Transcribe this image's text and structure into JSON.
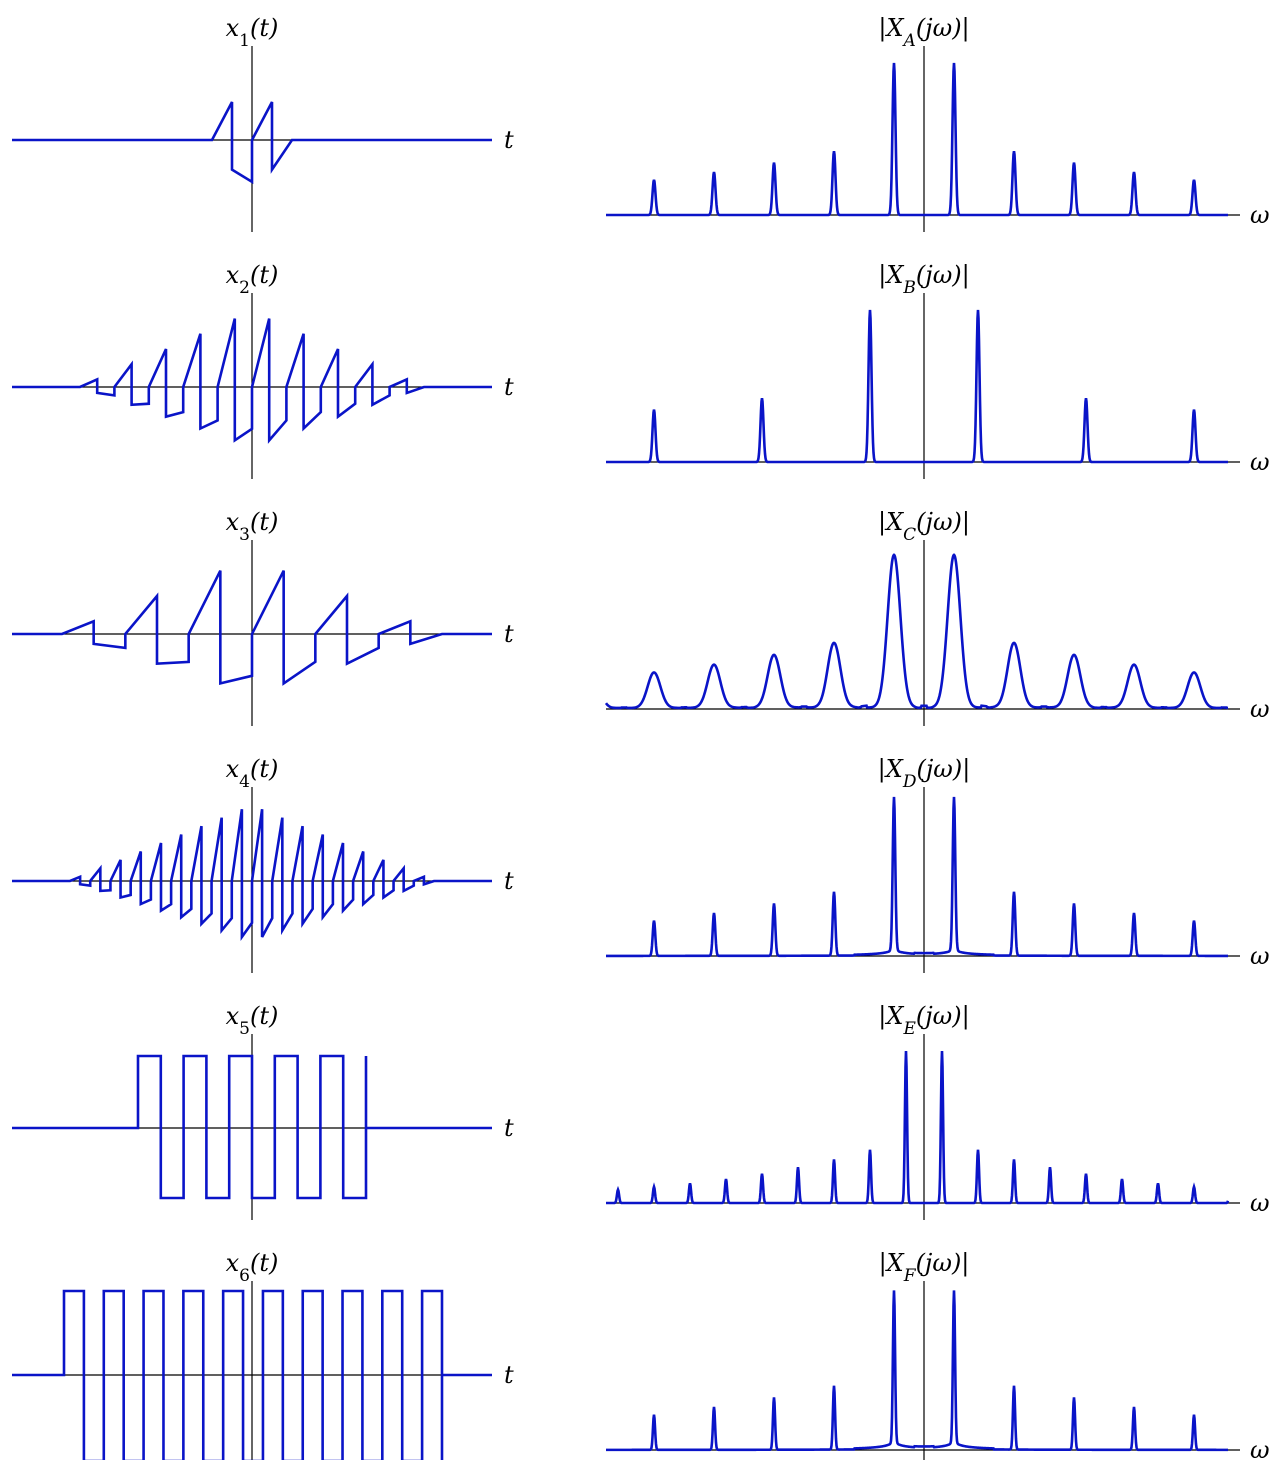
{
  "colors": {
    "signal": "#0a14c8",
    "axis": "#000000",
    "background": "#ffffff"
  },
  "axis_labels": {
    "time": "t",
    "freq": "ω"
  },
  "rows": [
    {
      "time_label": "x1(t)",
      "time_sub": "1",
      "freq_label": "|XA(jω)|",
      "freq_sub": "A",
      "time_kind": "sawtooth",
      "n_periods": 2,
      "peak": 1.0,
      "freq_peaks": {
        "spacing": 1.0,
        "count": 9,
        "first_height": 1.0,
        "decay": 0.42,
        "width": 0.07,
        "leakage": 0.0,
        "sidelobes": false
      }
    },
    {
      "time_label": "x2(t)",
      "time_sub": "2",
      "freq_label": "|XB(jω)|",
      "freq_sub": "B",
      "time_kind": "sawtooth",
      "n_periods": 10,
      "peak": 1.0,
      "freq_peaks": {
        "spacing": 1.8,
        "count": 5,
        "first_height": 1.0,
        "decay": 0.42,
        "width": 0.07,
        "leakage": 0.0,
        "sidelobes": false
      }
    },
    {
      "time_label": "x3(t)",
      "time_sub": "3",
      "freq_label": "|XC(jω)|",
      "freq_sub": "C",
      "time_kind": "sawtooth",
      "n_periods": 6,
      "peak": 1.0,
      "freq_peaks": {
        "spacing": 1.0,
        "count": 9,
        "first_height": 1.0,
        "decay": 0.42,
        "width": 0.3,
        "leakage": 0.0,
        "sidelobes": true
      }
    },
    {
      "time_label": "x4(t)",
      "time_sub": "4",
      "freq_label": "|XD(jω)|",
      "freq_sub": "D",
      "time_kind": "sawtooth",
      "n_periods": 18,
      "peak": 1.0,
      "freq_peaks": {
        "spacing": 1.0,
        "count": 9,
        "first_height": 1.0,
        "decay": 0.42,
        "width": 0.06,
        "leakage": 0.18,
        "sidelobes": false
      }
    },
    {
      "time_label": "x5(t)",
      "time_sub": "5",
      "freq_label": "|XE(jω)|",
      "freq_sub": "E",
      "time_kind": "square",
      "n_periods": 5,
      "peak": 1.0,
      "freq_peaks": {
        "spacing": 0.6,
        "count": 13,
        "first_height": 1.0,
        "decay": 0.35,
        "width": 0.05,
        "leakage": 0.0,
        "sidelobes": false
      }
    },
    {
      "time_label": "x6(t)",
      "time_sub": "6",
      "freq_label": "|XF(jω)|",
      "freq_sub": "F",
      "time_kind": "square",
      "n_periods": 9.5,
      "peak": 1.0,
      "freq_peaks": {
        "spacing": 1.0,
        "count": 9,
        "first_height": 1.0,
        "decay": 0.42,
        "width": 0.05,
        "leakage": 0.22,
        "sidelobes": false
      }
    }
  ]
}
